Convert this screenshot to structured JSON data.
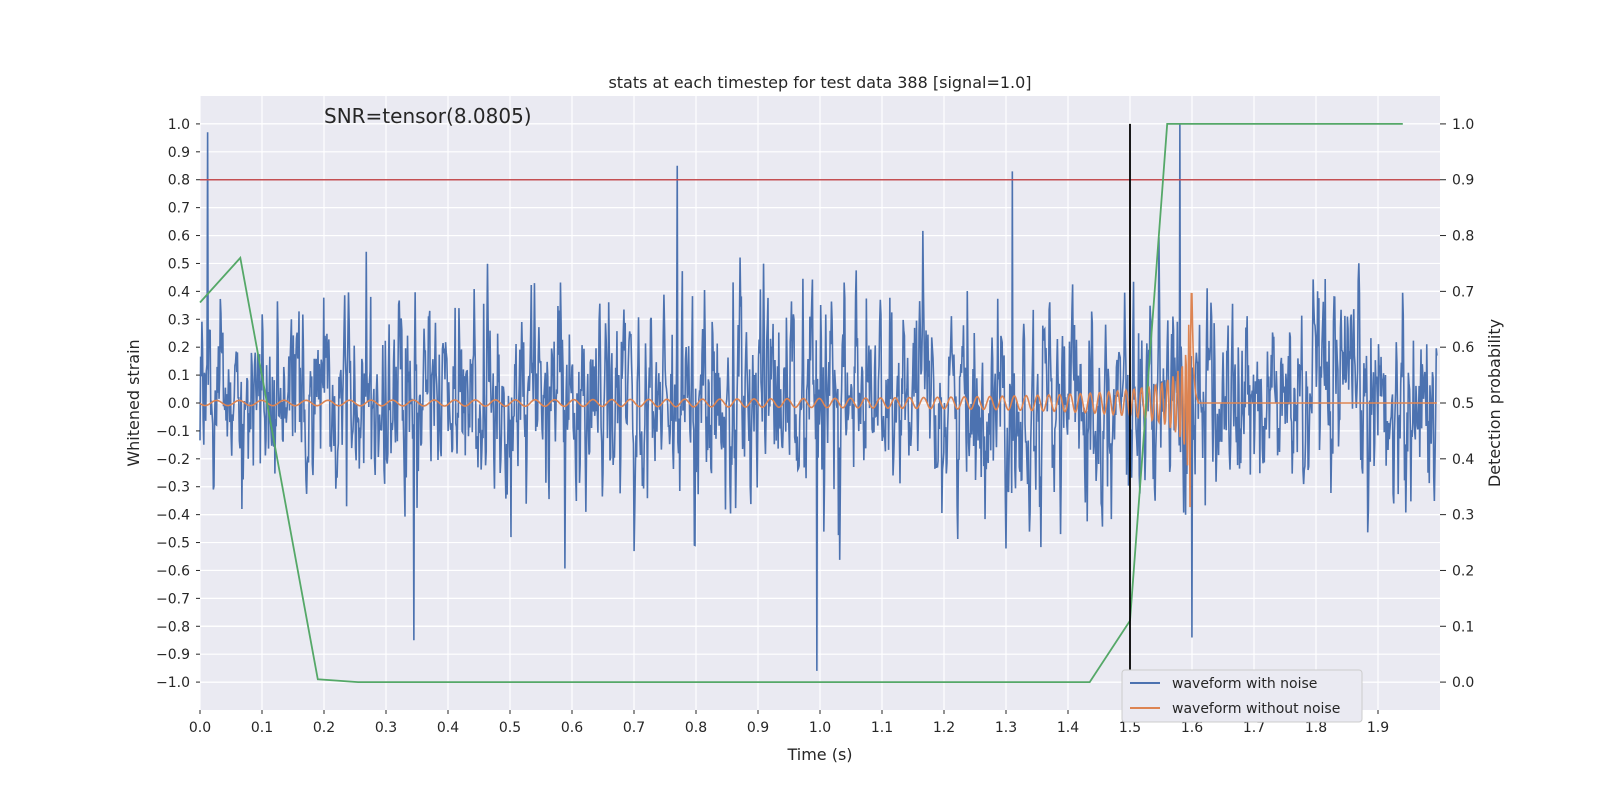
{
  "chart_data": {
    "type": "line",
    "title": "stats at each timestep for test data 388 [signal=1.0]",
    "xlabel": "Time (s)",
    "ylabel": "Whitened strain",
    "y2label": "Detection probability",
    "annotation": "SNR=tensor(8.0805)",
    "xlim": [
      0.0,
      2.0
    ],
    "ylim": [
      -1.1,
      1.1
    ],
    "y2lim": [
      -0.05,
      1.05
    ],
    "xticks": [
      0.0,
      0.1,
      0.2,
      0.3,
      0.4,
      0.5,
      0.6,
      0.7,
      0.8,
      0.9,
      1.0,
      1.1,
      1.2,
      1.3,
      1.4,
      1.5,
      1.6,
      1.7,
      1.8,
      1.9
    ],
    "xtick_labels": [
      "0.0",
      "0.1",
      "0.2",
      "0.3",
      "0.4",
      "0.5",
      "0.6",
      "0.7",
      "0.8",
      "0.9",
      "1.0",
      "1.1",
      "1.2",
      "1.3",
      "1.4",
      "1.5",
      "1.6",
      "1.7",
      "1.8",
      "1.9"
    ],
    "yticks": [
      1.0,
      0.9,
      0.8,
      0.7,
      0.6,
      0.5,
      0.4,
      0.3,
      0.2,
      0.1,
      0.0,
      -0.1,
      -0.2,
      -0.3,
      -0.4,
      -0.5,
      -0.6,
      -0.7,
      -0.8,
      -0.9,
      -1.0
    ],
    "ytick_labels": [
      "1.0",
      "0.9",
      "0.8",
      "0.7",
      "0.6",
      "0.5",
      "0.4",
      "0.3",
      "0.2",
      "0.1",
      "0.0",
      "−0.1",
      "−0.2",
      "−0.3",
      "−0.4",
      "−0.5",
      "−0.6",
      "−0.7",
      "−0.8",
      "−0.9",
      "−1.0"
    ],
    "y2ticks": [
      1.0,
      0.9,
      0.8,
      0.7,
      0.6,
      0.5,
      0.4,
      0.3,
      0.2,
      0.1,
      0.0
    ],
    "y2tick_labels": [
      "1.0",
      "0.9",
      "0.8",
      "0.7",
      "0.6",
      "0.5",
      "0.4",
      "0.3",
      "0.2",
      "0.1",
      "0.0"
    ],
    "grid": true,
    "legend_position": "lower-right",
    "threshold_line": {
      "axis": "y2",
      "value": 0.9,
      "color": "#c44e52"
    },
    "vertical_line": {
      "x": 1.5,
      "color": "#000000"
    },
    "series": [
      {
        "name": "waveform with noise",
        "axis": "y1",
        "color": "#4c72b0",
        "description_points": {
          "amplitude_range": [
            -0.96,
            1.0
          ],
          "notable_peaks": [
            [
              0.012,
              0.97
            ],
            [
              0.77,
              0.85
            ],
            [
              1.31,
              0.83
            ],
            [
              1.58,
              1.0
            ],
            [
              0.995,
              -0.96
            ],
            [
              0.345,
              -0.85
            ],
            [
              1.6,
              -0.84
            ]
          ]
        }
      },
      {
        "name": "waveform without noise",
        "axis": "y1",
        "color": "#dd8452",
        "description_points": {
          "chirp_start": 0.0,
          "merger_time": 1.6,
          "peak_amplitude": 0.44,
          "min_amplitude": -0.46
        }
      },
      {
        "name": "",
        "axis": "y2",
        "color": "#55a868",
        "x": [
          0.0,
          0.065,
          0.19,
          0.255,
          1.435,
          1.5,
          1.56,
          1.94
        ],
        "values": [
          0.68,
          0.76,
          0.005,
          0.0,
          0.0,
          0.11,
          1.0,
          1.0
        ]
      }
    ]
  }
}
